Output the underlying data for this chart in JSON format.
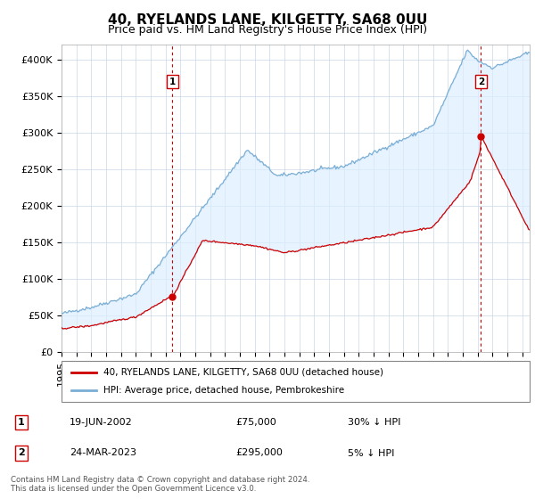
{
  "title": "40, RYELANDS LANE, KILGETTY, SA68 0UU",
  "subtitle": "Price paid vs. HM Land Registry's House Price Index (HPI)",
  "ylabel_ticks": [
    "£0",
    "£50K",
    "£100K",
    "£150K",
    "£200K",
    "£250K",
    "£300K",
    "£350K",
    "£400K"
  ],
  "ytick_values": [
    0,
    50000,
    100000,
    150000,
    200000,
    250000,
    300000,
    350000,
    400000
  ],
  "ylim": [
    0,
    420000
  ],
  "xlim_start": 1995.0,
  "xlim_end": 2026.5,
  "hpi_color": "#7aaed4",
  "price_color": "#cc0000",
  "vline_color": "#cc0000",
  "fill_color": "#ddeeff",
  "purchase1_x": 2002.46,
  "purchase1_y": 75000,
  "purchase2_x": 2023.23,
  "purchase2_y": 295000,
  "legend_label1": "40, RYELANDS LANE, KILGETTY, SA68 0UU (detached house)",
  "legend_label2": "HPI: Average price, detached house, Pembrokeshire",
  "table_rows": [
    {
      "num": "1",
      "date": "19-JUN-2002",
      "price": "£75,000",
      "note": "30% ↓ HPI"
    },
    {
      "num": "2",
      "date": "24-MAR-2023",
      "price": "£295,000",
      "note": "5% ↓ HPI"
    }
  ],
  "footnote": "Contains HM Land Registry data © Crown copyright and database right 2024.\nThis data is licensed under the Open Government Licence v3.0.",
  "background_color": "#ffffff",
  "grid_color": "#c8d8e8",
  "title_fontsize": 11,
  "subtitle_fontsize": 9,
  "tick_fontsize": 8
}
